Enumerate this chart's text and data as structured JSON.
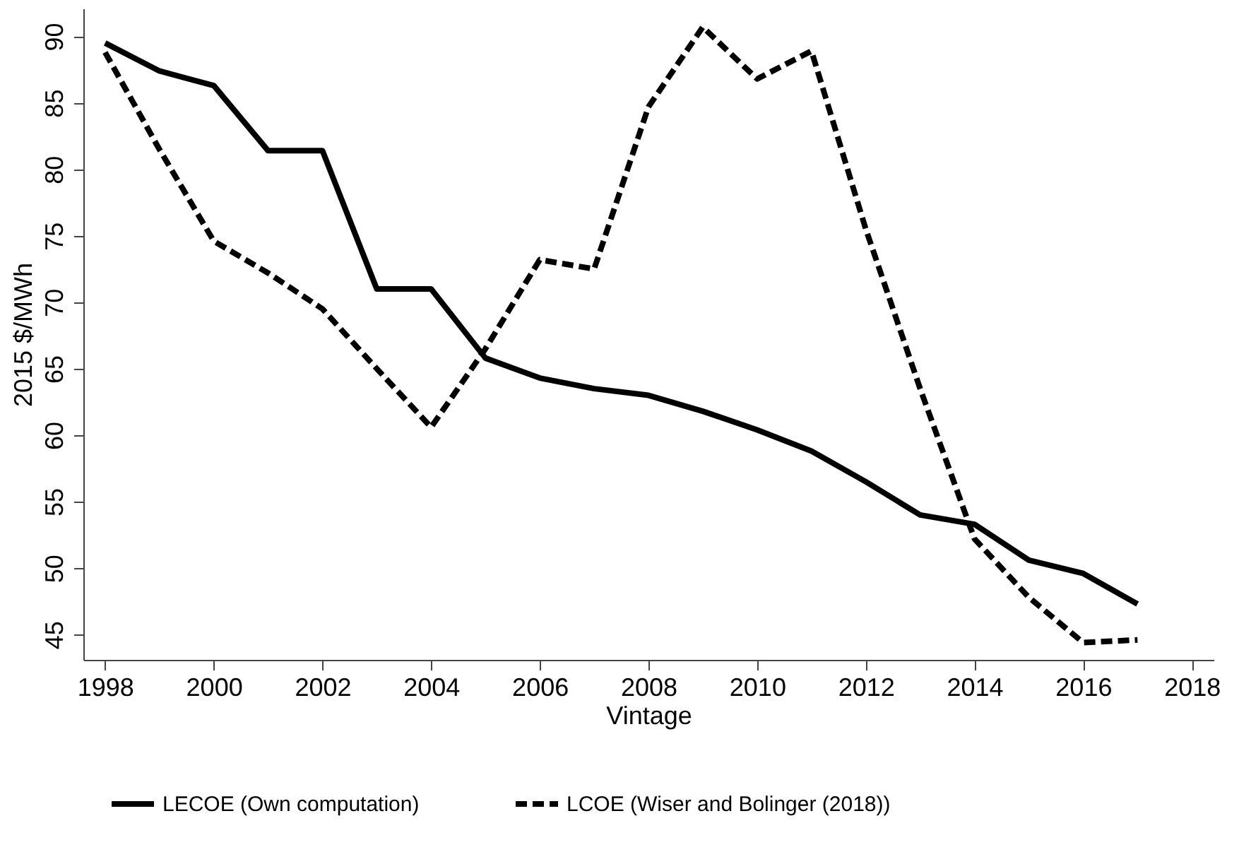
{
  "chart_data": {
    "type": "line",
    "xlabel": "Vintage",
    "ylabel": "2015 $/MWh",
    "x": [
      1998,
      1999,
      2000,
      2001,
      2002,
      2003,
      2004,
      2005,
      2006,
      2007,
      2008,
      2009,
      2010,
      2011,
      2012,
      2013,
      2014,
      2015,
      2016,
      2017
    ],
    "series": [
      {
        "name": "LECOE (Own computation)",
        "color": "#000000",
        "line_style": "solid",
        "values": [
          89.5,
          87.4,
          86.3,
          81.4,
          81.4,
          71.0,
          71.0,
          65.8,
          64.3,
          63.5,
          63.0,
          61.8,
          60.4,
          58.8,
          56.5,
          54.0,
          53.3,
          50.6,
          49.6,
          47.3
        ]
      },
      {
        "name": "LCOE (Wiser and Bolinger (2018))",
        "color": "#000000",
        "line_style": "dashed",
        "values": [
          88.8,
          81.5,
          74.6,
          72.2,
          69.5,
          65.0,
          60.6,
          66.5,
          73.2,
          72.5,
          84.7,
          90.7,
          86.8,
          88.9,
          75.5,
          63.5,
          52.2,
          47.8,
          44.4,
          44.6
        ]
      }
    ],
    "xlim": [
      1997.6,
      2018.4
    ],
    "xticks": [
      1998,
      2000,
      2002,
      2004,
      2006,
      2008,
      2010,
      2012,
      2014,
      2016,
      2018
    ],
    "ylim": [
      43.1,
      92.1
    ],
    "yticks": [
      45,
      50,
      55,
      60,
      65,
      70,
      75,
      80,
      85,
      90
    ],
    "grid": false,
    "legend": "bottom",
    "marker": "none"
  }
}
